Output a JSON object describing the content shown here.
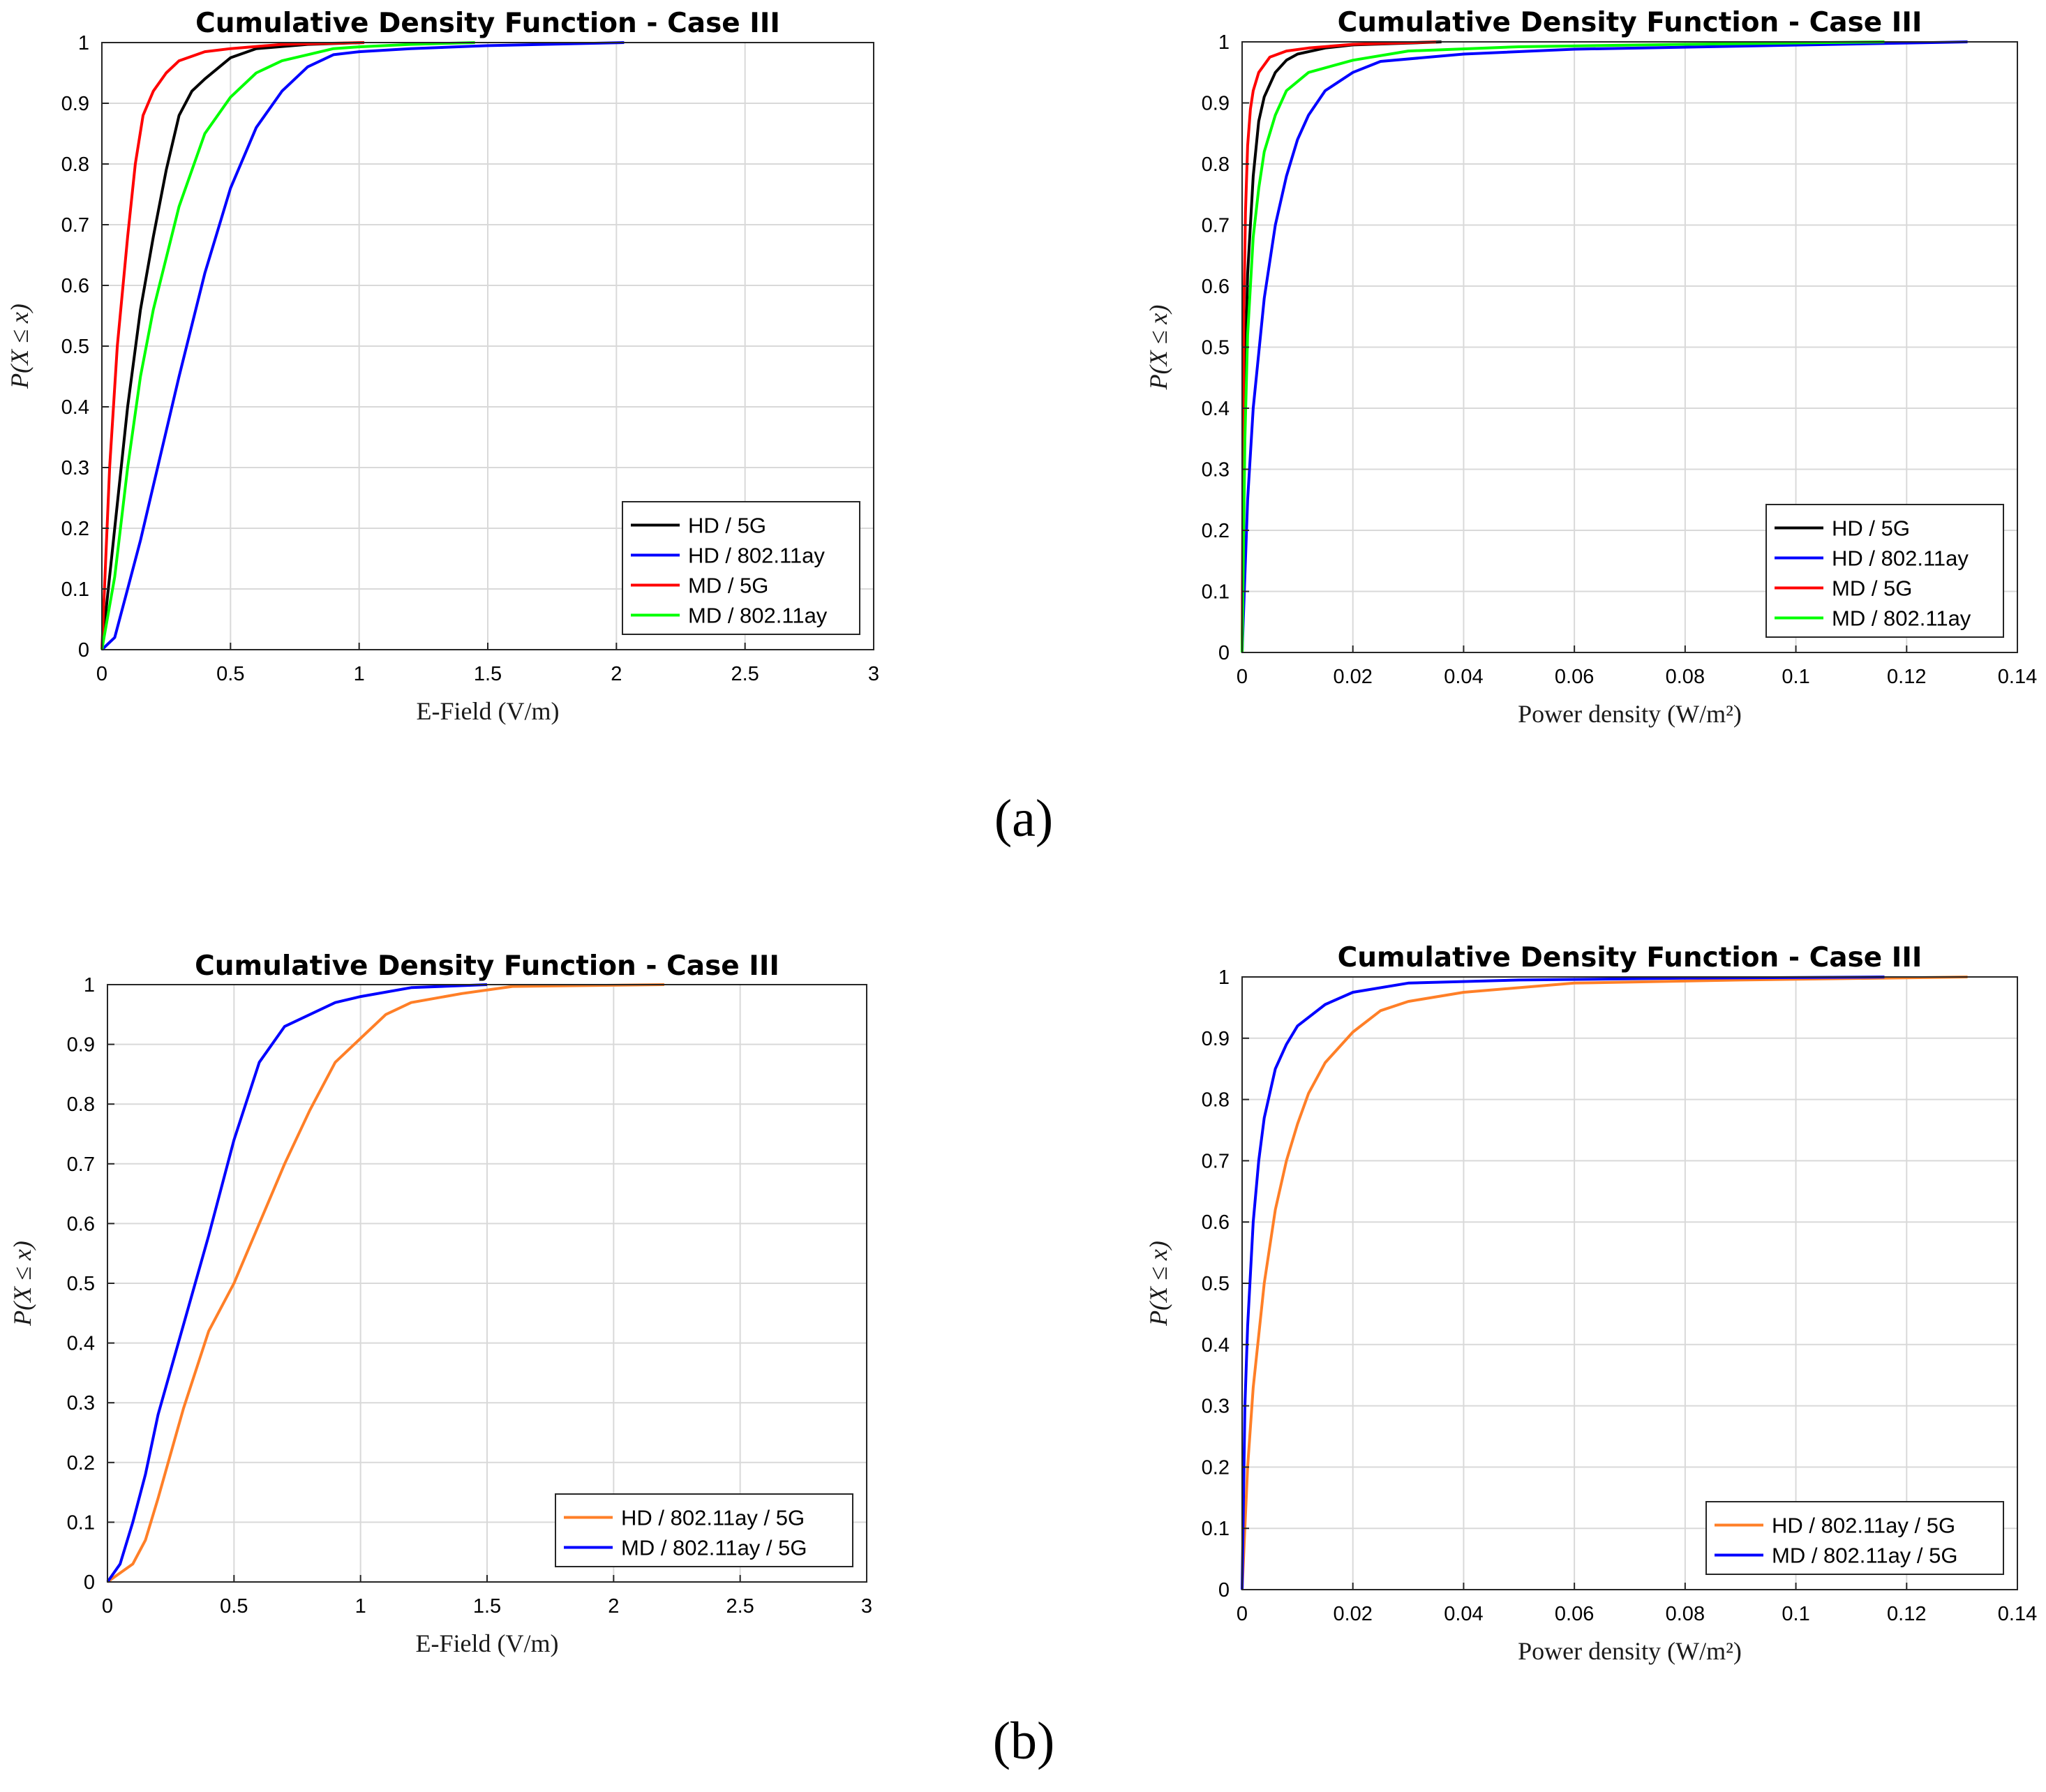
{
  "panel_labels": {
    "a": "(a)",
    "b": "(b)"
  },
  "chart_data": [
    {
      "type": "line",
      "title": "Cumulative Density Function - Case III",
      "xlabel": "E-Field (V/m)",
      "ylabel": "P(X ≤ x)",
      "xlim": [
        0,
        3
      ],
      "ylim": [
        0,
        1
      ],
      "xticks": [
        0,
        0.5,
        1,
        1.5,
        2,
        2.5,
        3
      ],
      "xtick_labels": [
        "0",
        "0.5",
        "1",
        "1.5",
        "2",
        "2.5",
        "3"
      ],
      "yticks": [
        0,
        0.1,
        0.2,
        0.3,
        0.4,
        0.5,
        0.6,
        0.7,
        0.8,
        0.9,
        1
      ],
      "ytick_labels": [
        "0",
        "0.1",
        "0.2",
        "0.3",
        "0.4",
        "0.5",
        "0.6",
        "0.7",
        "0.8",
        "0.9",
        "1"
      ],
      "grid": true,
      "legend_position": "bottom-right",
      "series": [
        {
          "name": "HD / 5G",
          "color": "#000000",
          "x": [
            0,
            0.05,
            0.1,
            0.15,
            0.2,
            0.25,
            0.3,
            0.35,
            0.4,
            0.5,
            0.6,
            0.8,
            1.02
          ],
          "y": [
            0,
            0.2,
            0.4,
            0.56,
            0.68,
            0.79,
            0.88,
            0.92,
            0.94,
            0.975,
            0.99,
            0.997,
            1
          ]
        },
        {
          "name": "HD / 802.11ay",
          "color": "#0000ff",
          "x": [
            0,
            0.05,
            0.1,
            0.15,
            0.2,
            0.3,
            0.4,
            0.5,
            0.6,
            0.7,
            0.8,
            0.9,
            1.0,
            1.2,
            1.5,
            2.03
          ],
          "y": [
            0,
            0.02,
            0.1,
            0.18,
            0.27,
            0.45,
            0.62,
            0.76,
            0.86,
            0.92,
            0.96,
            0.98,
            0.985,
            0.99,
            0.995,
            1
          ]
        },
        {
          "name": "MD / 5G",
          "color": "#ff0000",
          "x": [
            0,
            0.03,
            0.06,
            0.1,
            0.13,
            0.16,
            0.2,
            0.25,
            0.3,
            0.4,
            0.5,
            0.7,
            1.02
          ],
          "y": [
            0,
            0.3,
            0.5,
            0.68,
            0.8,
            0.88,
            0.92,
            0.95,
            0.97,
            0.985,
            0.99,
            0.997,
            1
          ]
        },
        {
          "name": "MD / 802.11ay",
          "color": "#00ff00",
          "x": [
            0,
            0.05,
            0.1,
            0.15,
            0.2,
            0.3,
            0.4,
            0.5,
            0.6,
            0.7,
            0.8,
            0.9,
            1.0,
            1.2,
            1.45
          ],
          "y": [
            0,
            0.12,
            0.3,
            0.45,
            0.56,
            0.73,
            0.85,
            0.91,
            0.95,
            0.97,
            0.98,
            0.99,
            0.993,
            0.997,
            1
          ]
        }
      ]
    },
    {
      "type": "line",
      "title": "Cumulative Density Function - Case III",
      "xlabel": "Power density (W/m²)",
      "ylabel": "P(X ≤ x)",
      "xlim": [
        0,
        0.14
      ],
      "ylim": [
        0,
        1
      ],
      "xticks": [
        0,
        0.02,
        0.04,
        0.06,
        0.08,
        0.1,
        0.12,
        0.14
      ],
      "xtick_labels": [
        "0",
        "0.02",
        "0.04",
        "0.06",
        "0.08",
        "0.1",
        "0.12",
        "0.14"
      ],
      "yticks": [
        0,
        0.1,
        0.2,
        0.3,
        0.4,
        0.5,
        0.6,
        0.7,
        0.8,
        0.9,
        1
      ],
      "ytick_labels": [
        "0",
        "0.1",
        "0.2",
        "0.3",
        "0.4",
        "0.5",
        "0.6",
        "0.7",
        "0.8",
        "0.9",
        "1"
      ],
      "grid": true,
      "legend_position": "bottom-right",
      "series": [
        {
          "name": "HD / 5G",
          "color": "#000000",
          "x": [
            0,
            0.0005,
            0.001,
            0.002,
            0.003,
            0.004,
            0.006,
            0.008,
            0.01,
            0.015,
            0.02,
            0.03,
            0.036
          ],
          "y": [
            0,
            0.45,
            0.62,
            0.78,
            0.87,
            0.91,
            0.95,
            0.97,
            0.98,
            0.99,
            0.995,
            0.998,
            1
          ]
        },
        {
          "name": "HD / 802.11ay",
          "color": "#0000ff",
          "x": [
            0,
            0.001,
            0.002,
            0.004,
            0.006,
            0.008,
            0.01,
            0.012,
            0.015,
            0.02,
            0.025,
            0.04,
            0.06,
            0.09,
            0.131
          ],
          "y": [
            0,
            0.25,
            0.4,
            0.58,
            0.7,
            0.78,
            0.84,
            0.88,
            0.92,
            0.95,
            0.968,
            0.98,
            0.988,
            0.993,
            1
          ]
        },
        {
          "name": "MD / 5G",
          "color": "#ff0000",
          "x": [
            0,
            0.0003,
            0.0006,
            0.001,
            0.0015,
            0.002,
            0.003,
            0.005,
            0.008,
            0.012,
            0.02,
            0.035
          ],
          "y": [
            0,
            0.55,
            0.72,
            0.83,
            0.89,
            0.92,
            0.95,
            0.975,
            0.985,
            0.99,
            0.996,
            1
          ]
        },
        {
          "name": "MD / 802.11ay",
          "color": "#00ff00",
          "x": [
            0,
            0.0005,
            0.001,
            0.002,
            0.003,
            0.004,
            0.006,
            0.008,
            0.012,
            0.02,
            0.03,
            0.05,
            0.08,
            0.116
          ],
          "y": [
            0,
            0.35,
            0.52,
            0.68,
            0.76,
            0.82,
            0.88,
            0.92,
            0.95,
            0.97,
            0.985,
            0.992,
            0.996,
            1
          ]
        }
      ]
    },
    {
      "type": "line",
      "title": "Cumulative Density Function - Case III",
      "xlabel": "E-Field (V/m)",
      "ylabel": "P(X ≤ x)",
      "xlim": [
        0,
        3
      ],
      "ylim": [
        0,
        1
      ],
      "xticks": [
        0,
        0.5,
        1,
        1.5,
        2,
        2.5,
        3
      ],
      "xtick_labels": [
        "0",
        "0.5",
        "1",
        "1.5",
        "2",
        "2.5",
        "3"
      ],
      "yticks": [
        0,
        0.1,
        0.2,
        0.3,
        0.4,
        0.5,
        0.6,
        0.7,
        0.8,
        0.9,
        1
      ],
      "ytick_labels": [
        "0",
        "0.1",
        "0.2",
        "0.3",
        "0.4",
        "0.5",
        "0.6",
        "0.7",
        "0.8",
        "0.9",
        "1"
      ],
      "grid": true,
      "legend_position": "bottom-right",
      "series": [
        {
          "name": "HD / 802.11ay / 5G",
          "color": "#ff7f27",
          "x": [
            0,
            0.1,
            0.15,
            0.2,
            0.3,
            0.4,
            0.5,
            0.6,
            0.7,
            0.8,
            0.9,
            1.0,
            1.1,
            1.2,
            1.4,
            1.6,
            2.2
          ],
          "y": [
            0,
            0.03,
            0.07,
            0.14,
            0.29,
            0.42,
            0.5,
            0.6,
            0.7,
            0.79,
            0.87,
            0.91,
            0.95,
            0.97,
            0.985,
            0.997,
            1
          ]
        },
        {
          "name": "MD / 802.11ay / 5G",
          "color": "#0000ff",
          "x": [
            0,
            0.05,
            0.1,
            0.15,
            0.2,
            0.3,
            0.4,
            0.5,
            0.6,
            0.7,
            0.8,
            0.9,
            1.0,
            1.2,
            1.5
          ],
          "y": [
            0,
            0.03,
            0.1,
            0.18,
            0.28,
            0.43,
            0.58,
            0.74,
            0.87,
            0.93,
            0.95,
            0.97,
            0.98,
            0.995,
            1
          ]
        }
      ]
    },
    {
      "type": "line",
      "title": "Cumulative Density Function - Case III",
      "xlabel": "Power density (W/m²)",
      "ylabel": "P(X ≤ x)",
      "xlim": [
        0,
        0.14
      ],
      "ylim": [
        0,
        1
      ],
      "xticks": [
        0,
        0.02,
        0.04,
        0.06,
        0.08,
        0.1,
        0.12,
        0.14
      ],
      "xtick_labels": [
        "0",
        "0.02",
        "0.04",
        "0.06",
        "0.08",
        "0.1",
        "0.12",
        "0.14"
      ],
      "yticks": [
        0,
        0.1,
        0.2,
        0.3,
        0.4,
        0.5,
        0.6,
        0.7,
        0.8,
        0.9,
        1
      ],
      "ytick_labels": [
        "0",
        "0.1",
        "0.2",
        "0.3",
        "0.4",
        "0.5",
        "0.6",
        "0.7",
        "0.8",
        "0.9",
        "1"
      ],
      "grid": true,
      "legend_position": "bottom-right",
      "series": [
        {
          "name": "HD / 802.11ay / 5G",
          "color": "#ff7f27",
          "x": [
            0,
            0.001,
            0.002,
            0.004,
            0.006,
            0.008,
            0.01,
            0.012,
            0.015,
            0.02,
            0.025,
            0.03,
            0.04,
            0.06,
            0.09,
            0.131
          ],
          "y": [
            0,
            0.2,
            0.33,
            0.5,
            0.62,
            0.7,
            0.76,
            0.81,
            0.86,
            0.91,
            0.945,
            0.96,
            0.975,
            0.99,
            0.995,
            1
          ]
        },
        {
          "name": "MD / 802.11ay / 5G",
          "color": "#0000ff",
          "x": [
            0,
            0.0005,
            0.001,
            0.002,
            0.003,
            0.004,
            0.006,
            0.008,
            0.01,
            0.015,
            0.02,
            0.03,
            0.05,
            0.08,
            0.116
          ],
          "y": [
            0,
            0.3,
            0.43,
            0.6,
            0.7,
            0.77,
            0.85,
            0.89,
            0.92,
            0.955,
            0.975,
            0.99,
            0.995,
            0.998,
            1
          ]
        }
      ]
    }
  ]
}
